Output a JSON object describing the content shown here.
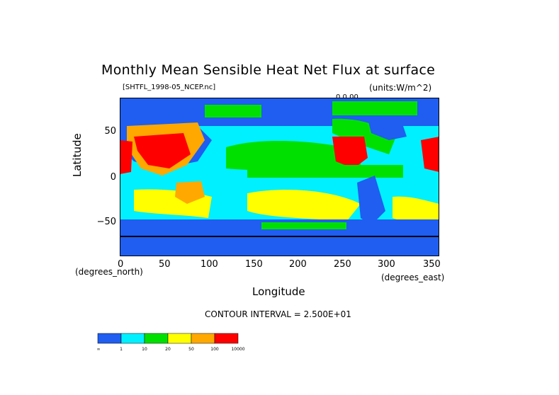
{
  "title": "Monthly Mean Sensible Heat Net Flux at surface",
  "file_name": "[SHTFL_1998-05_NCEP.nc]",
  "units": "(units:W/m^2)",
  "contour_info": "0 0.00",
  "y_axis": {
    "label": "Latitude",
    "ticks": [
      "50",
      "0",
      "−50"
    ]
  },
  "x_axis": {
    "label": "Longitude",
    "ticks": [
      "0",
      "50",
      "100",
      "150",
      "200",
      "250",
      "300",
      "350"
    ],
    "unit_left": "(degrees_north)",
    "unit_right": "(degrees_east)"
  },
  "contour_interval": "CONTOUR INTERVAL = 2.500E+01",
  "colorbar": {
    "colors": [
      "#1f5ef0",
      "#00f0ff",
      "#00e000",
      "#ffff00",
      "#ffa800",
      "#ff0000"
    ],
    "labels": [
      "-∞",
      "1",
      "10",
      "20",
      "50",
      "100",
      "10000"
    ]
  },
  "chart_data": {
    "type": "heatmap",
    "title": "Monthly Mean Sensible Heat Net Flux at surface",
    "xlabel": "Longitude",
    "ylabel": "Latitude",
    "xlim": [
      0,
      360
    ],
    "ylim": [
      -90,
      90
    ],
    "levels": [
      1,
      10,
      20,
      50,
      100,
      10000
    ],
    "units": "W/m^2"
  }
}
